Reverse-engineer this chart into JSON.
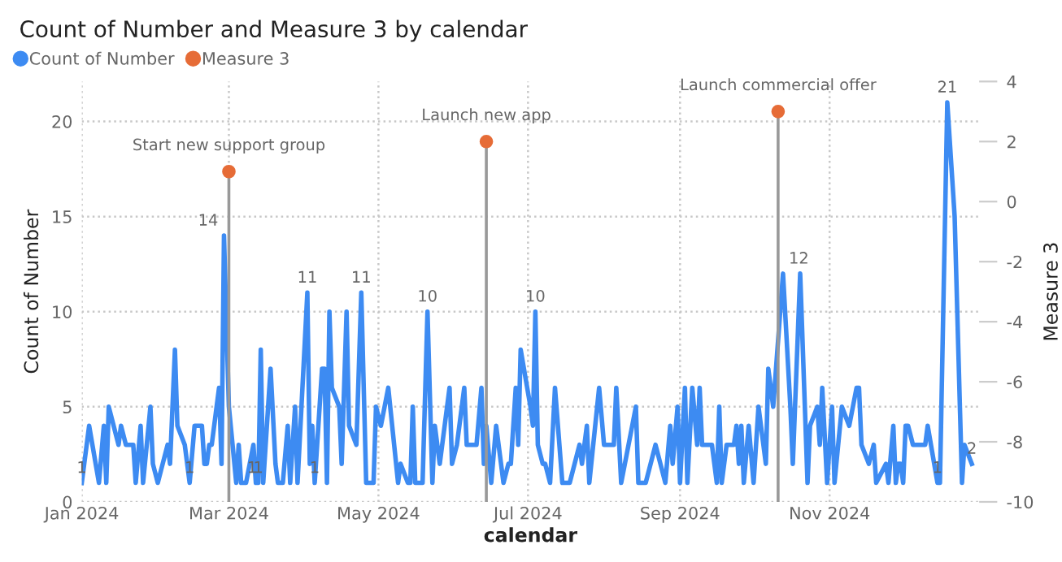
{
  "chart_data": {
    "type": "line",
    "title": "Count of Number and Measure 3 by calendar",
    "xlabel": "calendar",
    "ylabel": "Count of Number",
    "y2label": "Measure 3",
    "xlim": [
      "2024-01-01",
      "2025-01-01"
    ],
    "xticks": [
      {
        "value": "2024-01-01",
        "label": "Jan 2024"
      },
      {
        "value": "2024-03-01",
        "label": "Mar 2024"
      },
      {
        "value": "2024-05-01",
        "label": "May 2024"
      },
      {
        "value": "2024-07-01",
        "label": "Jul 2024"
      },
      {
        "value": "2024-09-01",
        "label": "Sep 2024"
      },
      {
        "value": "2024-11-01",
        "label": "Nov 2024"
      }
    ],
    "ylim": [
      0,
      22.1
    ],
    "yticks": [
      0,
      5,
      10,
      15,
      20
    ],
    "y2lim": [
      -10,
      4
    ],
    "y2ticks": [
      -10,
      -8,
      -6,
      -4,
      -2,
      0,
      2,
      4
    ],
    "grid": true,
    "legend": "top left",
    "marker": "none",
    "line_style": "solid",
    "series": [
      {
        "name": "Count of Number",
        "color": "#3d8bf2",
        "x": [
          "2024-01-01",
          "2024-01-04",
          "2024-01-08",
          "2024-01-10",
          "2024-01-11",
          "2024-01-12",
          "2024-01-16",
          "2024-01-17",
          "2024-01-19",
          "2024-01-22",
          "2024-01-23",
          "2024-01-25",
          "2024-01-26",
          "2024-01-29",
          "2024-01-30",
          "2024-02-01",
          "2024-02-03",
          "2024-02-05",
          "2024-02-06",
          "2024-02-08",
          "2024-02-09",
          "2024-02-12",
          "2024-02-14",
          "2024-02-16",
          "2024-02-19",
          "2024-02-20",
          "2024-02-21",
          "2024-02-22",
          "2024-02-23",
          "2024-02-26",
          "2024-02-27",
          "2024-02-28",
          "2024-03-01",
          "2024-03-04",
          "2024-03-05",
          "2024-03-06",
          "2024-03-08",
          "2024-03-11",
          "2024-03-12",
          "2024-03-13",
          "2024-03-14",
          "2024-03-15",
          "2024-03-18",
          "2024-03-20",
          "2024-03-21",
          "2024-03-23",
          "2024-03-25",
          "2024-03-26",
          "2024-03-28",
          "2024-03-29",
          "2024-04-02",
          "2024-04-03",
          "2024-04-04",
          "2024-04-05",
          "2024-04-08",
          "2024-04-09",
          "2024-04-10",
          "2024-04-11",
          "2024-04-12",
          "2024-04-15",
          "2024-04-16",
          "2024-04-18",
          "2024-04-19",
          "2024-04-22",
          "2024-04-24",
          "2024-04-26",
          "2024-04-29",
          "2024-04-30",
          "2024-05-02",
          "2024-05-05",
          "2024-05-09",
          "2024-05-10",
          "2024-05-13",
          "2024-05-14",
          "2024-05-15",
          "2024-05-16",
          "2024-05-19",
          "2024-05-21",
          "2024-05-23",
          "2024-05-24",
          "2024-05-26",
          "2024-05-30",
          "2024-05-31",
          "2024-06-02",
          "2024-06-05",
          "2024-06-06",
          "2024-06-10",
          "2024-06-12",
          "2024-06-13",
          "2024-06-14",
          "2024-06-16",
          "2024-06-18",
          "2024-06-21",
          "2024-06-23",
          "2024-06-24",
          "2024-06-26",
          "2024-06-27",
          "2024-06-28",
          "2024-07-02",
          "2024-07-03",
          "2024-07-04",
          "2024-07-05",
          "2024-07-07",
          "2024-07-08",
          "2024-07-10",
          "2024-07-12",
          "2024-07-15",
          "2024-07-18",
          "2024-07-22",
          "2024-07-23",
          "2024-07-25",
          "2024-07-26",
          "2024-07-30",
          "2024-08-01",
          "2024-08-05",
          "2024-08-06",
          "2024-08-08",
          "2024-08-14",
          "2024-08-15",
          "2024-08-18",
          "2024-08-22",
          "2024-08-24",
          "2024-08-26",
          "2024-08-28",
          "2024-08-29",
          "2024-08-31",
          "2024-09-01",
          "2024-09-03",
          "2024-09-04",
          "2024-09-06",
          "2024-09-08",
          "2024-09-09",
          "2024-09-10",
          "2024-09-14",
          "2024-09-16",
          "2024-09-17",
          "2024-09-18",
          "2024-09-20",
          "2024-09-23",
          "2024-09-24",
          "2024-09-25",
          "2024-09-26",
          "2024-09-27",
          "2024-09-29",
          "2024-10-01",
          "2024-10-03",
          "2024-10-06",
          "2024-10-07",
          "2024-10-09",
          "2024-10-13",
          "2024-10-16",
          "2024-10-17",
          "2024-10-20",
          "2024-10-23",
          "2024-10-24",
          "2024-10-27",
          "2024-10-28",
          "2024-10-29",
          "2024-10-31",
          "2024-11-02",
          "2024-11-03",
          "2024-11-06",
          "2024-11-09",
          "2024-11-12",
          "2024-11-13",
          "2024-11-14",
          "2024-11-17",
          "2024-11-19",
          "2024-11-20",
          "2024-11-24",
          "2024-11-25",
          "2024-11-27",
          "2024-11-28",
          "2024-11-29",
          "2024-11-30",
          "2024-12-01",
          "2024-12-02",
          "2024-12-03",
          "2024-12-05",
          "2024-12-10",
          "2024-12-11",
          "2024-12-15",
          "2024-12-16",
          "2024-12-19",
          "2024-12-22",
          "2024-12-25",
          "2024-12-26",
          "2024-12-29"
        ],
        "values": [
          1,
          4,
          1,
          4,
          1,
          5,
          3,
          4,
          3,
          3,
          1,
          4,
          1,
          5,
          2,
          1,
          2,
          3,
          2,
          8,
          4,
          3,
          1,
          4,
          4,
          2,
          2,
          3,
          3,
          6,
          2,
          14,
          5,
          1,
          3,
          1,
          1,
          3,
          1,
          1,
          8,
          1,
          7,
          2,
          1,
          1,
          4,
          1,
          5,
          1,
          11,
          2,
          4,
          1,
          7,
          7,
          1,
          10,
          6,
          5,
          2,
          10,
          4,
          3,
          11,
          1,
          1,
          5,
          4,
          6,
          1,
          2,
          1,
          1,
          5,
          1,
          1,
          10,
          1,
          4,
          2,
          6,
          2,
          3,
          6,
          3,
          3,
          6,
          2,
          4,
          1,
          4,
          1,
          2,
          2,
          6,
          3,
          8,
          5,
          4,
          10,
          3,
          2,
          2,
          1,
          6,
          1,
          1,
          3,
          2,
          4,
          1,
          6,
          3,
          3,
          6,
          1,
          5,
          1,
          1,
          3,
          2,
          1,
          4,
          2,
          5,
          1,
          6,
          1,
          6,
          3,
          6,
          3,
          3,
          1,
          5,
          1,
          3,
          3,
          4,
          2,
          4,
          1,
          4,
          1,
          5,
          2,
          7,
          5,
          12,
          5,
          2,
          12,
          1,
          4,
          5,
          3,
          6,
          1,
          5,
          1,
          5,
          4,
          6,
          6,
          3,
          2,
          3,
          1,
          2,
          1,
          4,
          1,
          2,
          2,
          1,
          4,
          4,
          3,
          3,
          4,
          1,
          1,
          21,
          15,
          1,
          3,
          2
        ],
        "value_labels": [
          "1",
          null,
          null,
          null,
          null,
          null,
          null,
          null,
          null,
          null,
          null,
          null,
          null,
          null,
          null,
          null,
          null,
          null,
          null,
          null,
          null,
          null,
          "1",
          null,
          null,
          null,
          null,
          null,
          null,
          null,
          null,
          "14",
          null,
          "1",
          null,
          null,
          null,
          null,
          null,
          "1",
          null,
          null,
          null,
          null,
          null,
          null,
          null,
          null,
          null,
          null,
          "11",
          null,
          null,
          "1",
          null,
          null,
          null,
          null,
          null,
          null,
          null,
          null,
          null,
          null,
          "11",
          null,
          null,
          null,
          null,
          null,
          null,
          null,
          null,
          null,
          null,
          null,
          null,
          "10",
          null,
          null,
          null,
          null,
          null,
          null,
          null,
          null,
          null,
          null,
          null,
          null,
          null,
          null,
          null,
          null,
          null,
          null,
          null,
          null,
          null,
          null,
          "10",
          null,
          null,
          null,
          null,
          null,
          null,
          null,
          null,
          null,
          null,
          null,
          null,
          null,
          null,
          null,
          null,
          null,
          null,
          null,
          null,
          null,
          null,
          null,
          null,
          null,
          null,
          null,
          null,
          null,
          null,
          null,
          null,
          null,
          null,
          null,
          null,
          null,
          null,
          null,
          null,
          null,
          null,
          null,
          null,
          null,
          null,
          null,
          null,
          "12",
          null,
          null,
          null,
          null,
          null,
          null,
          null,
          null,
          null,
          null,
          null,
          null,
          null,
          null,
          null,
          null,
          null,
          null,
          null,
          null,
          null,
          null,
          null,
          null,
          null,
          null,
          null,
          null,
          null,
          null,
          null,
          "1",
          null,
          "21",
          null,
          null,
          null,
          "2"
        ]
      },
      {
        "name": "Measure 3",
        "type": "scatter",
        "marker": "circle",
        "axis": "y2",
        "color": "#e66c37",
        "x": [
          "2024-03-01",
          "2024-06-14",
          "2024-10-11"
        ],
        "values": [
          1,
          2,
          3
        ],
        "errors": [
          [
            -10,
            1
          ],
          [
            -10,
            2
          ],
          [
            -10,
            3
          ]
        ]
      }
    ],
    "annotations": [
      "Start new support group",
      "Launch new app",
      "Launch commercial offer"
    ]
  }
}
